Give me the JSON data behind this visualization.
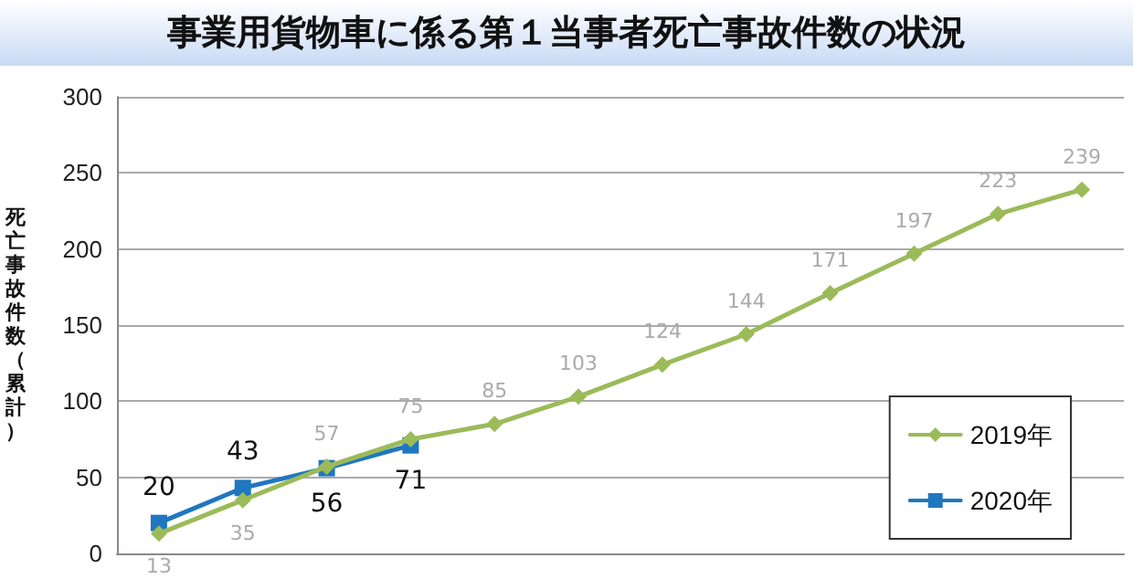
{
  "chart_data": {
    "type": "line",
    "title": "事業用貨物車に係る第１当事者死亡事故件数の状況",
    "ylabel": "死亡事故件数（累計）",
    "categories": [
      null,
      null,
      null,
      null,
      null,
      null,
      null,
      null,
      null,
      null,
      null,
      null
    ],
    "series": [
      {
        "name": "2019年",
        "color": "#9bbb59",
        "values": [
          13,
          35,
          57,
          75,
          85,
          103,
          124,
          144,
          171,
          197,
          223,
          239
        ],
        "marker": "diamond"
      },
      {
        "name": "2020年",
        "color": "#1f77c0",
        "values": [
          20,
          43,
          56,
          71,
          null,
          null,
          null,
          null,
          null,
          null,
          null,
          null
        ],
        "marker": "square"
      }
    ],
    "ylim": [
      0,
      300
    ],
    "yticks": [
      0,
      50,
      100,
      150,
      200,
      250,
      300
    ],
    "grid": "y",
    "legend": "bottom right",
    "data_labels": true
  }
}
